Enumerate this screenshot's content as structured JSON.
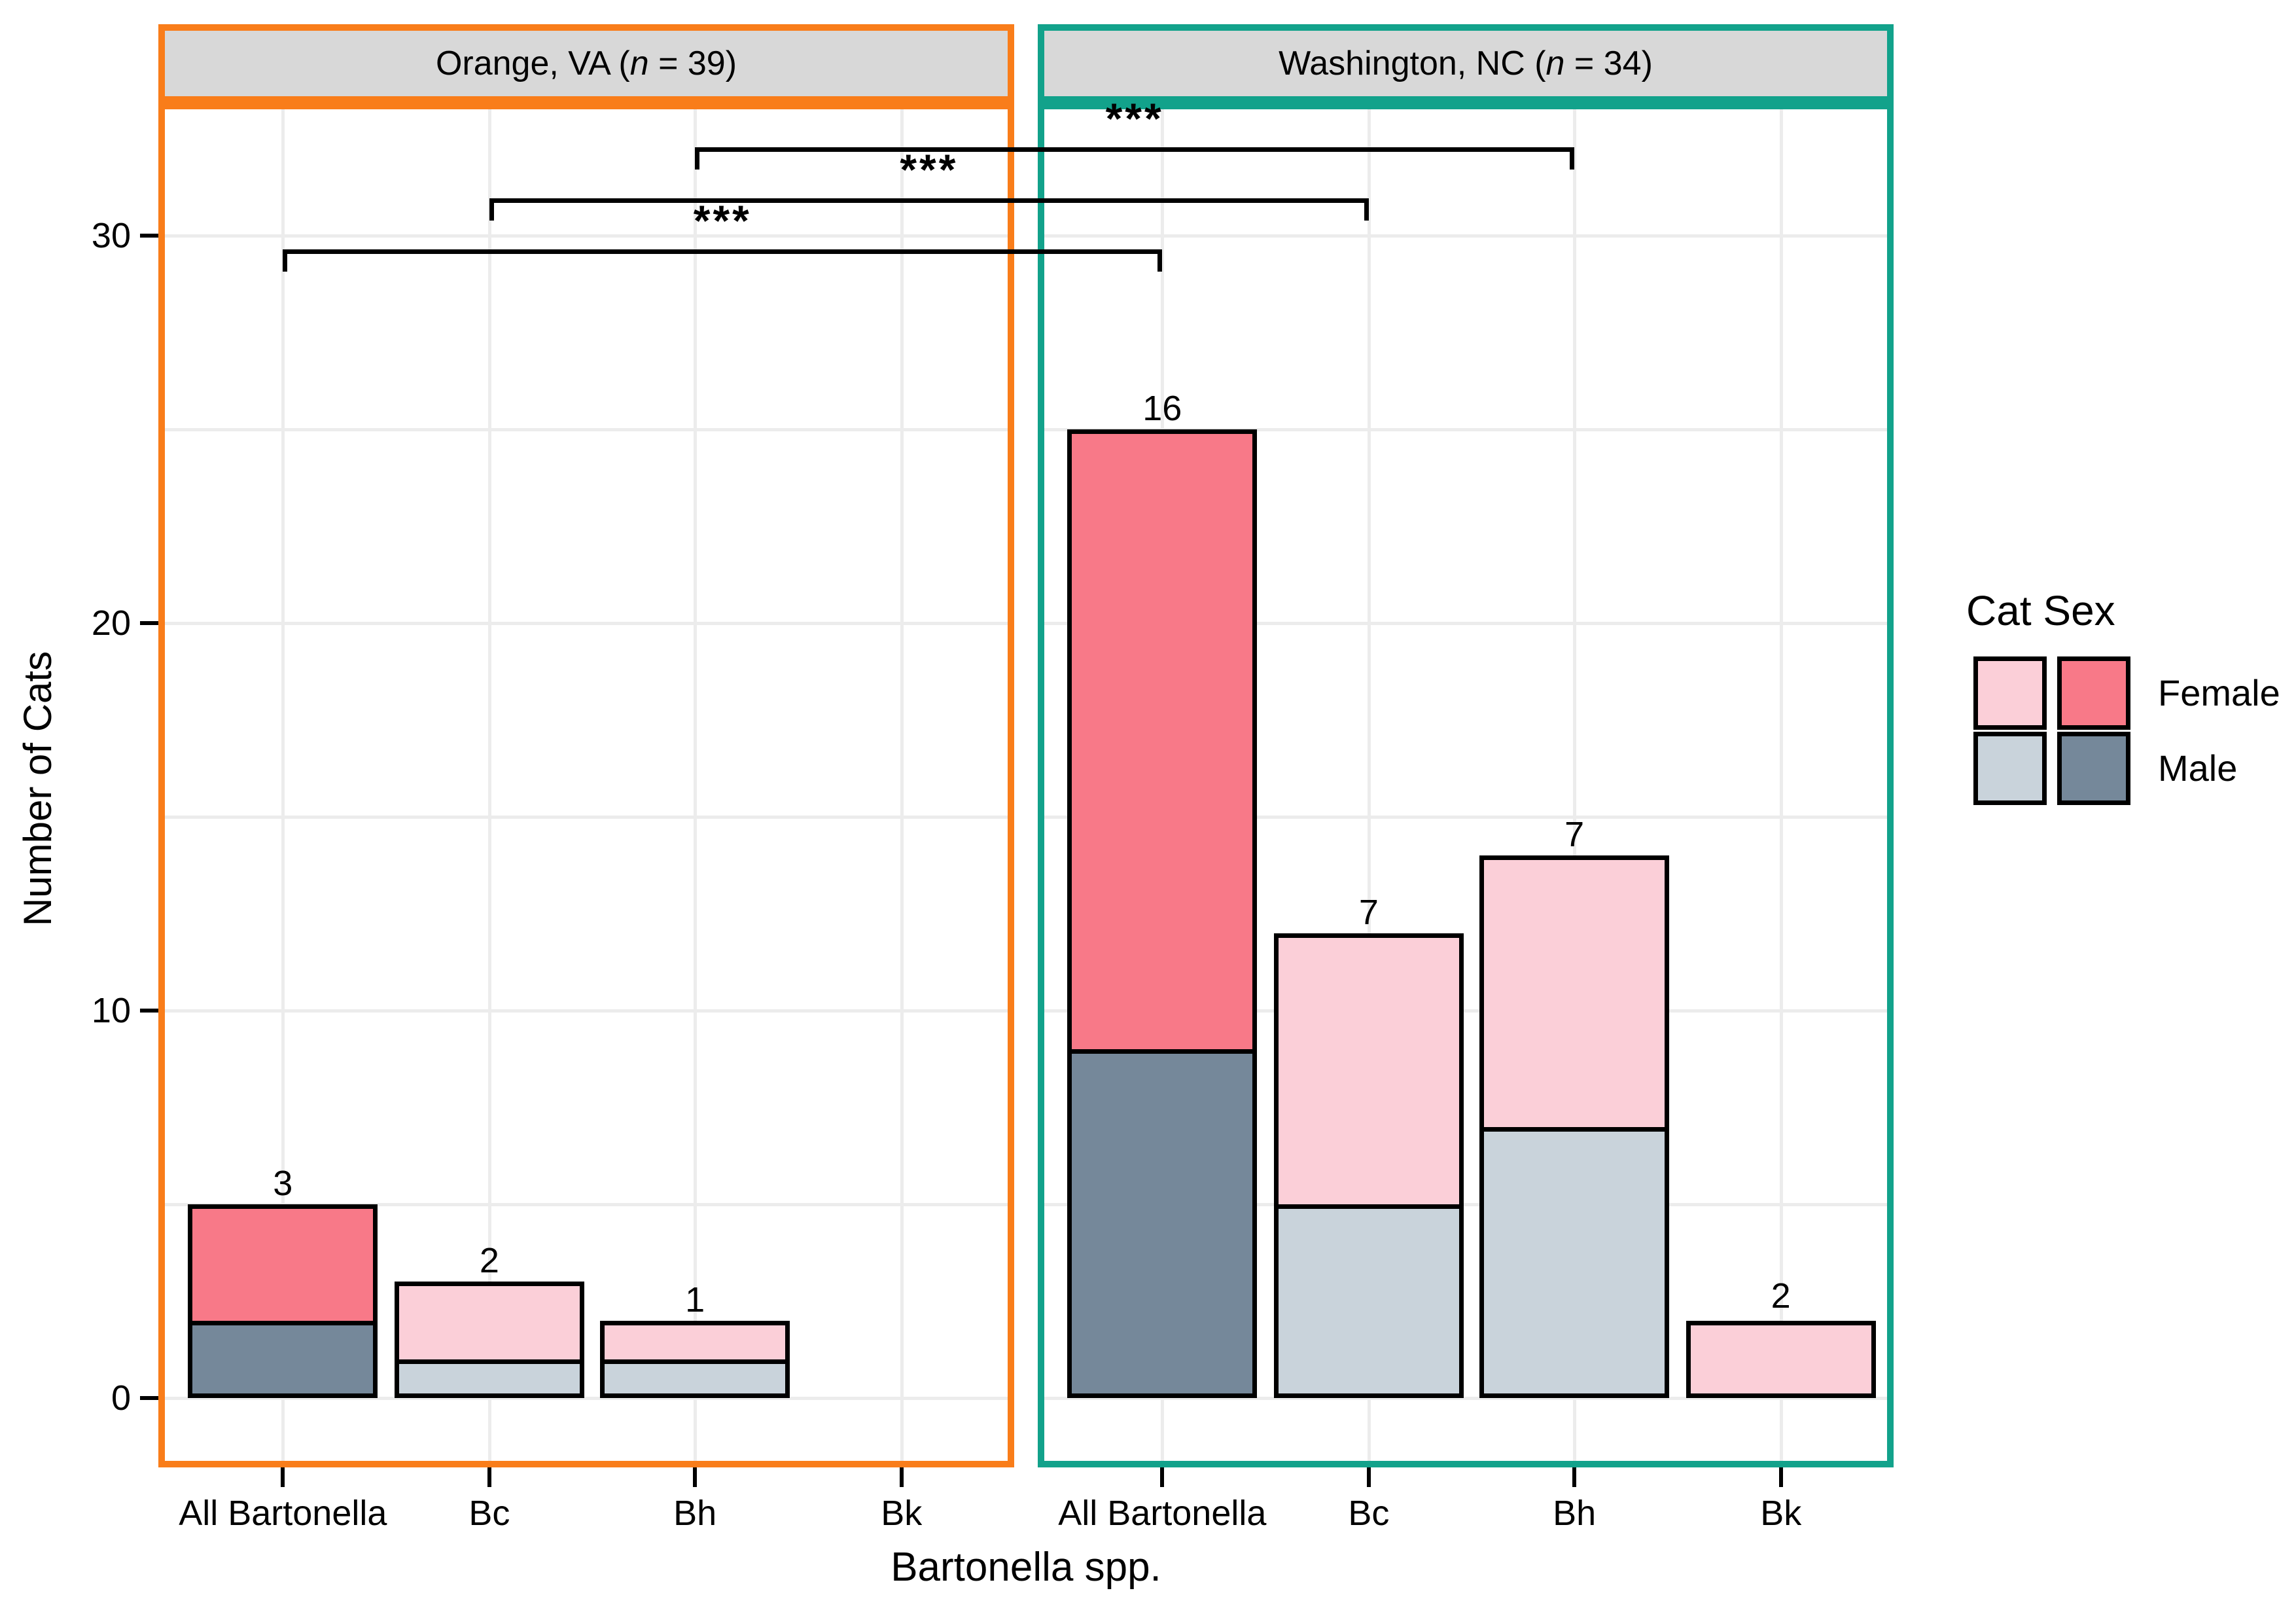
{
  "chart_data": {
    "type": "bar",
    "stacked": true,
    "xlabel": "Bartonella spp.",
    "ylabel": "Number of Cats",
    "yticks": [
      0,
      10,
      20,
      30
    ],
    "ylim": [
      0,
      33
    ],
    "grid_step": 5,
    "grid_on": true,
    "categories": [
      "All Bartonella",
      "Bc",
      "Bh",
      "Bk"
    ],
    "facets": [
      {
        "label": "Orange, VA",
        "n_symbol": "n",
        "n": "39",
        "border_color": "#F97D1A",
        "series": [
          {
            "category": "All Bartonella",
            "male": 2,
            "female": 3,
            "shade": "dark"
          },
          {
            "category": "Bc",
            "male": 1,
            "female": 2,
            "shade": "light"
          },
          {
            "category": "Bh",
            "male": 1,
            "female": 1,
            "shade": "light"
          },
          {
            "category": "Bk",
            "male": 0,
            "female": 0,
            "shade": "light"
          }
        ]
      },
      {
        "label": "Washington, NC",
        "n_symbol": "n",
        "n": "34",
        "border_color": "#12A28B",
        "series": [
          {
            "category": "All Bartonella",
            "male": 9,
            "female": 16,
            "shade": "dark"
          },
          {
            "category": "Bc",
            "male": 5,
            "female": 7,
            "shade": "light"
          },
          {
            "category": "Bh",
            "male": 7,
            "female": 7,
            "shade": "light"
          },
          {
            "category": "Bk",
            "male": 0,
            "female": 2,
            "shade": "light"
          }
        ]
      }
    ],
    "significance": [
      {
        "category": "Bh",
        "label": "***"
      },
      {
        "category": "Bc",
        "label": "***"
      },
      {
        "category": "All Bartonella",
        "label": "***"
      }
    ],
    "legend": {
      "title": "Cat Sex",
      "entries": [
        {
          "label": "Female",
          "light": "#FBCFD8",
          "dark": "#F87988"
        },
        {
          "label": "Male",
          "light": "#C9D3DB",
          "dark": "#75889A"
        }
      ]
    },
    "colors": {
      "strip_bg": "#D8D8D8",
      "grid": "#ECECEC",
      "bar_outline": "#000000",
      "panel_bg": "#FFFFFF",
      "text": "#000000"
    }
  }
}
